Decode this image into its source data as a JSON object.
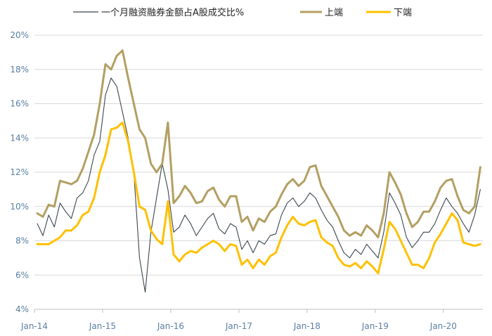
{
  "chart_data": {
    "type": "line",
    "x_tick_labels": [
      "Jan-14",
      "Jan-15",
      "Jan-16",
      "Jan-17",
      "Jan-18",
      "Jan-19",
      "Jan-20"
    ],
    "y_tick_labels": [
      "4%",
      "6%",
      "8%",
      "10%",
      "12%",
      "14%",
      "16%",
      "18%",
      "20%"
    ],
    "ylim": [
      4,
      20
    ],
    "xlim": [
      "2014-01",
      "2020-07"
    ],
    "grid": "horizontal",
    "legend_placement": "top",
    "series": [
      {
        "name": "一个月融资融券金额占A股成交比%",
        "color": "#3a4750",
        "points": [
          [
            "2014-01",
            9.0
          ],
          [
            "2014-02",
            8.3
          ],
          [
            "2014-03",
            9.5
          ],
          [
            "2014-04",
            8.8
          ],
          [
            "2014-05",
            10.2
          ],
          [
            "2014-06",
            9.7
          ],
          [
            "2014-07",
            9.3
          ],
          [
            "2014-08",
            10.5
          ],
          [
            "2014-09",
            10.8
          ],
          [
            "2014-10",
            11.5
          ],
          [
            "2014-11",
            13.0
          ],
          [
            "2014-12",
            13.8
          ],
          [
            "2015-01",
            16.5
          ],
          [
            "2015-02",
            17.5
          ],
          [
            "2015-03",
            17.0
          ],
          [
            "2015-04",
            15.5
          ],
          [
            "2015-05",
            14.0
          ],
          [
            "2015-06",
            12.0
          ],
          [
            "2015-07",
            7.0
          ],
          [
            "2015-08",
            5.0
          ],
          [
            "2015-09",
            8.5
          ],
          [
            "2015-10",
            10.5
          ],
          [
            "2015-11",
            12.5
          ],
          [
            "2015-12",
            11.0
          ],
          [
            "2016-01",
            8.5
          ],
          [
            "2016-02",
            8.8
          ],
          [
            "2016-03",
            9.5
          ],
          [
            "2016-04",
            9.0
          ],
          [
            "2016-05",
            8.3
          ],
          [
            "2016-06",
            8.8
          ],
          [
            "2016-07",
            9.3
          ],
          [
            "2016-08",
            9.6
          ],
          [
            "2016-09",
            8.7
          ],
          [
            "2016-10",
            8.4
          ],
          [
            "2016-11",
            9.0
          ],
          [
            "2016-12",
            8.8
          ],
          [
            "2017-01",
            7.5
          ],
          [
            "2017-02",
            8.0
          ],
          [
            "2017-03",
            7.3
          ],
          [
            "2017-04",
            8.0
          ],
          [
            "2017-05",
            7.8
          ],
          [
            "2017-06",
            8.3
          ],
          [
            "2017-07",
            8.4
          ],
          [
            "2017-08",
            9.5
          ],
          [
            "2017-09",
            10.2
          ],
          [
            "2017-10",
            10.5
          ],
          [
            "2017-11",
            10.0
          ],
          [
            "2017-12",
            10.3
          ],
          [
            "2018-01",
            10.8
          ],
          [
            "2018-02",
            10.5
          ],
          [
            "2018-03",
            9.8
          ],
          [
            "2018-04",
            9.2
          ],
          [
            "2018-05",
            8.8
          ],
          [
            "2018-06",
            8.0
          ],
          [
            "2018-07",
            7.3
          ],
          [
            "2018-08",
            7.0
          ],
          [
            "2018-09",
            7.5
          ],
          [
            "2018-10",
            7.2
          ],
          [
            "2018-11",
            7.8
          ],
          [
            "2018-12",
            7.4
          ],
          [
            "2019-01",
            7.0
          ],
          [
            "2019-02",
            8.5
          ],
          [
            "2019-03",
            10.8
          ],
          [
            "2019-04",
            10.2
          ],
          [
            "2019-05",
            9.5
          ],
          [
            "2019-06",
            8.2
          ],
          [
            "2019-07",
            7.6
          ],
          [
            "2019-08",
            8.0
          ],
          [
            "2019-09",
            8.5
          ],
          [
            "2019-10",
            8.5
          ],
          [
            "2019-11",
            9.0
          ],
          [
            "2019-12",
            9.8
          ],
          [
            "2020-01",
            10.5
          ],
          [
            "2020-02",
            10.0
          ],
          [
            "2020-03",
            9.6
          ],
          [
            "2020-04",
            9.0
          ],
          [
            "2020-05",
            8.5
          ],
          [
            "2020-06",
            9.5
          ],
          [
            "2020-07",
            11.0
          ]
        ]
      },
      {
        "name": "上端",
        "color": "#b39f62",
        "points": [
          [
            "2014-01",
            9.6
          ],
          [
            "2014-02",
            9.4
          ],
          [
            "2014-03",
            10.1
          ],
          [
            "2014-04",
            10.0
          ],
          [
            "2014-05",
            11.5
          ],
          [
            "2014-06",
            11.4
          ],
          [
            "2014-07",
            11.3
          ],
          [
            "2014-08",
            11.5
          ],
          [
            "2014-09",
            12.2
          ],
          [
            "2014-10",
            13.2
          ],
          [
            "2014-11",
            14.2
          ],
          [
            "2014-12",
            16.0
          ],
          [
            "2015-01",
            18.3
          ],
          [
            "2015-02",
            18.0
          ],
          [
            "2015-03",
            18.8
          ],
          [
            "2015-04",
            19.1
          ],
          [
            "2015-05",
            17.5
          ],
          [
            "2015-06",
            16.0
          ],
          [
            "2015-07",
            14.5
          ],
          [
            "2015-08",
            14.0
          ],
          [
            "2015-09",
            12.5
          ],
          [
            "2015-10",
            12.0
          ],
          [
            "2015-11",
            12.5
          ],
          [
            "2015-12",
            14.9
          ],
          [
            "2016-01",
            10.2
          ],
          [
            "2016-02",
            10.6
          ],
          [
            "2016-03",
            11.2
          ],
          [
            "2016-04",
            10.8
          ],
          [
            "2016-05",
            10.2
          ],
          [
            "2016-06",
            10.3
          ],
          [
            "2016-07",
            10.9
          ],
          [
            "2016-08",
            11.1
          ],
          [
            "2016-09",
            10.4
          ],
          [
            "2016-10",
            10.0
          ],
          [
            "2016-11",
            10.6
          ],
          [
            "2016-12",
            10.6
          ],
          [
            "2017-01",
            9.1
          ],
          [
            "2017-02",
            9.4
          ],
          [
            "2017-03",
            8.6
          ],
          [
            "2017-04",
            9.3
          ],
          [
            "2017-05",
            9.1
          ],
          [
            "2017-06",
            9.7
          ],
          [
            "2017-07",
            10.0
          ],
          [
            "2017-08",
            10.7
          ],
          [
            "2017-09",
            11.3
          ],
          [
            "2017-10",
            11.6
          ],
          [
            "2017-11",
            11.2
          ],
          [
            "2017-12",
            11.5
          ],
          [
            "2018-01",
            12.3
          ],
          [
            "2018-02",
            12.4
          ],
          [
            "2018-03",
            11.2
          ],
          [
            "2018-04",
            10.6
          ],
          [
            "2018-05",
            10.0
          ],
          [
            "2018-06",
            9.4
          ],
          [
            "2018-07",
            8.6
          ],
          [
            "2018-08",
            8.3
          ],
          [
            "2018-09",
            8.5
          ],
          [
            "2018-10",
            8.3
          ],
          [
            "2018-11",
            8.9
          ],
          [
            "2018-12",
            8.6
          ],
          [
            "2019-01",
            8.2
          ],
          [
            "2019-02",
            9.6
          ],
          [
            "2019-03",
            12.0
          ],
          [
            "2019-04",
            11.4
          ],
          [
            "2019-05",
            10.7
          ],
          [
            "2019-06",
            9.6
          ],
          [
            "2019-07",
            8.8
          ],
          [
            "2019-08",
            9.1
          ],
          [
            "2019-09",
            9.7
          ],
          [
            "2019-10",
            9.7
          ],
          [
            "2019-11",
            10.3
          ],
          [
            "2019-12",
            11.1
          ],
          [
            "2020-01",
            11.5
          ],
          [
            "2020-02",
            11.6
          ],
          [
            "2020-03",
            10.6
          ],
          [
            "2020-04",
            9.8
          ],
          [
            "2020-05",
            9.6
          ],
          [
            "2020-06",
            10.0
          ],
          [
            "2020-07",
            12.3
          ]
        ]
      },
      {
        "name": "下端",
        "color": "#ffc000",
        "points": [
          [
            "2014-01",
            7.8
          ],
          [
            "2014-02",
            7.8
          ],
          [
            "2014-03",
            7.8
          ],
          [
            "2014-04",
            8.0
          ],
          [
            "2014-05",
            8.2
          ],
          [
            "2014-06",
            8.6
          ],
          [
            "2014-07",
            8.6
          ],
          [
            "2014-08",
            8.9
          ],
          [
            "2014-09",
            9.5
          ],
          [
            "2014-10",
            9.7
          ],
          [
            "2014-11",
            10.5
          ],
          [
            "2014-12",
            12.0
          ],
          [
            "2015-01",
            13.0
          ],
          [
            "2015-02",
            14.5
          ],
          [
            "2015-03",
            14.6
          ],
          [
            "2015-04",
            14.9
          ],
          [
            "2015-05",
            13.8
          ],
          [
            "2015-06",
            12.0
          ],
          [
            "2015-07",
            10.0
          ],
          [
            "2015-08",
            9.8
          ],
          [
            "2015-09",
            8.6
          ],
          [
            "2015-10",
            8.1
          ],
          [
            "2015-11",
            7.8
          ],
          [
            "2015-12",
            10.3
          ],
          [
            "2016-01",
            7.2
          ],
          [
            "2016-02",
            6.8
          ],
          [
            "2016-03",
            7.2
          ],
          [
            "2016-04",
            7.4
          ],
          [
            "2016-05",
            7.3
          ],
          [
            "2016-06",
            7.6
          ],
          [
            "2016-07",
            7.8
          ],
          [
            "2016-08",
            8.0
          ],
          [
            "2016-09",
            7.8
          ],
          [
            "2016-10",
            7.4
          ],
          [
            "2016-11",
            7.8
          ],
          [
            "2016-12",
            7.7
          ],
          [
            "2017-01",
            6.6
          ],
          [
            "2017-02",
            6.9
          ],
          [
            "2017-03",
            6.4
          ],
          [
            "2017-04",
            6.9
          ],
          [
            "2017-05",
            6.6
          ],
          [
            "2017-06",
            7.1
          ],
          [
            "2017-07",
            7.3
          ],
          [
            "2017-08",
            8.2
          ],
          [
            "2017-09",
            8.9
          ],
          [
            "2017-10",
            9.4
          ],
          [
            "2017-11",
            9.0
          ],
          [
            "2017-12",
            8.9
          ],
          [
            "2018-01",
            9.1
          ],
          [
            "2018-02",
            9.2
          ],
          [
            "2018-03",
            8.2
          ],
          [
            "2018-04",
            7.9
          ],
          [
            "2018-05",
            7.7
          ],
          [
            "2018-06",
            7.0
          ],
          [
            "2018-07",
            6.6
          ],
          [
            "2018-08",
            6.5
          ],
          [
            "2018-09",
            6.7
          ],
          [
            "2018-10",
            6.4
          ],
          [
            "2018-11",
            6.8
          ],
          [
            "2018-12",
            6.5
          ],
          [
            "2019-01",
            6.1
          ],
          [
            "2019-02",
            7.5
          ],
          [
            "2019-03",
            9.1
          ],
          [
            "2019-04",
            8.7
          ],
          [
            "2019-05",
            8.0
          ],
          [
            "2019-06",
            7.3
          ],
          [
            "2019-07",
            6.6
          ],
          [
            "2019-08",
            6.6
          ],
          [
            "2019-09",
            6.4
          ],
          [
            "2019-10",
            7.0
          ],
          [
            "2019-11",
            7.9
          ],
          [
            "2019-12",
            8.4
          ],
          [
            "2020-01",
            9.0
          ],
          [
            "2020-02",
            9.6
          ],
          [
            "2020-03",
            9.2
          ],
          [
            "2020-04",
            7.9
          ],
          [
            "2020-05",
            7.8
          ],
          [
            "2020-06",
            7.7
          ],
          [
            "2020-07",
            7.8
          ]
        ]
      }
    ]
  }
}
